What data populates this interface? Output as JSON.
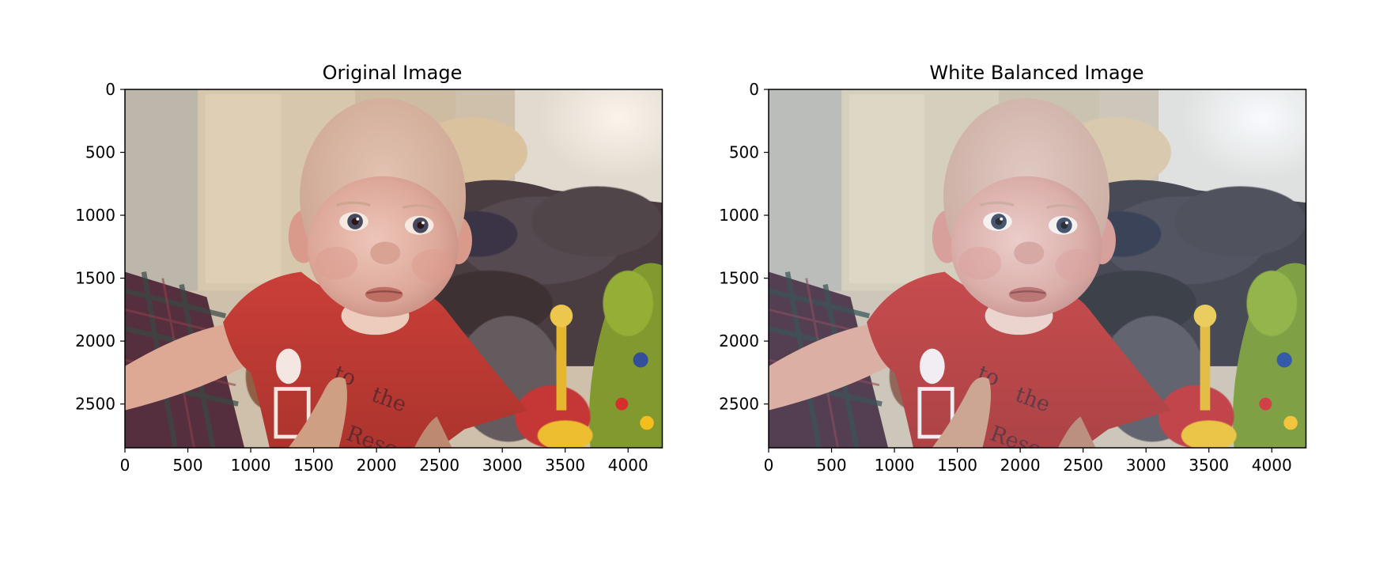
{
  "figure": {
    "background": "#ffffff"
  },
  "chart_data": [
    {
      "type": "image",
      "title": "Original Image",
      "image_size": [
        4272,
        2848
      ],
      "xlim": [
        0,
        4272
      ],
      "ylim": [
        2848,
        0
      ],
      "x_ticks": [
        0,
        500,
        1000,
        1500,
        2000,
        2500,
        3000,
        3500,
        4000
      ],
      "x_tick_labels": [
        "0",
        "500",
        "1000",
        "1500",
        "2000",
        "2500",
        "3000",
        "3500",
        "4000"
      ],
      "y_ticks": [
        0,
        500,
        1000,
        1500,
        2000,
        2500
      ],
      "y_tick_labels": [
        "0",
        "500",
        "1000",
        "1500",
        "2000",
        "2500"
      ],
      "grid": false,
      "xlabel": "",
      "ylabel": "",
      "image_content": "photo of a baby in a red shirt held up by adult hands, indoor blurred background",
      "tone": "warm"
    },
    {
      "type": "image",
      "title": "White Balanced Image",
      "image_size": [
        4272,
        2848
      ],
      "xlim": [
        0,
        4272
      ],
      "ylim": [
        2848,
        0
      ],
      "x_ticks": [
        0,
        500,
        1000,
        1500,
        2000,
        2500,
        3000,
        3500,
        4000
      ],
      "x_tick_labels": [
        "0",
        "500",
        "1000",
        "1500",
        "2000",
        "2500",
        "3000",
        "3500",
        "4000"
      ],
      "y_ticks": [
        0,
        500,
        1000,
        1500,
        2000,
        2500
      ],
      "y_tick_labels": [
        "0",
        "500",
        "1000",
        "1500",
        "2000",
        "2500"
      ],
      "grid": false,
      "xlabel": "",
      "ylabel": "",
      "image_content": "same photo after white balance correction, slightly cooler and brighter",
      "tone": "neutral"
    }
  ]
}
